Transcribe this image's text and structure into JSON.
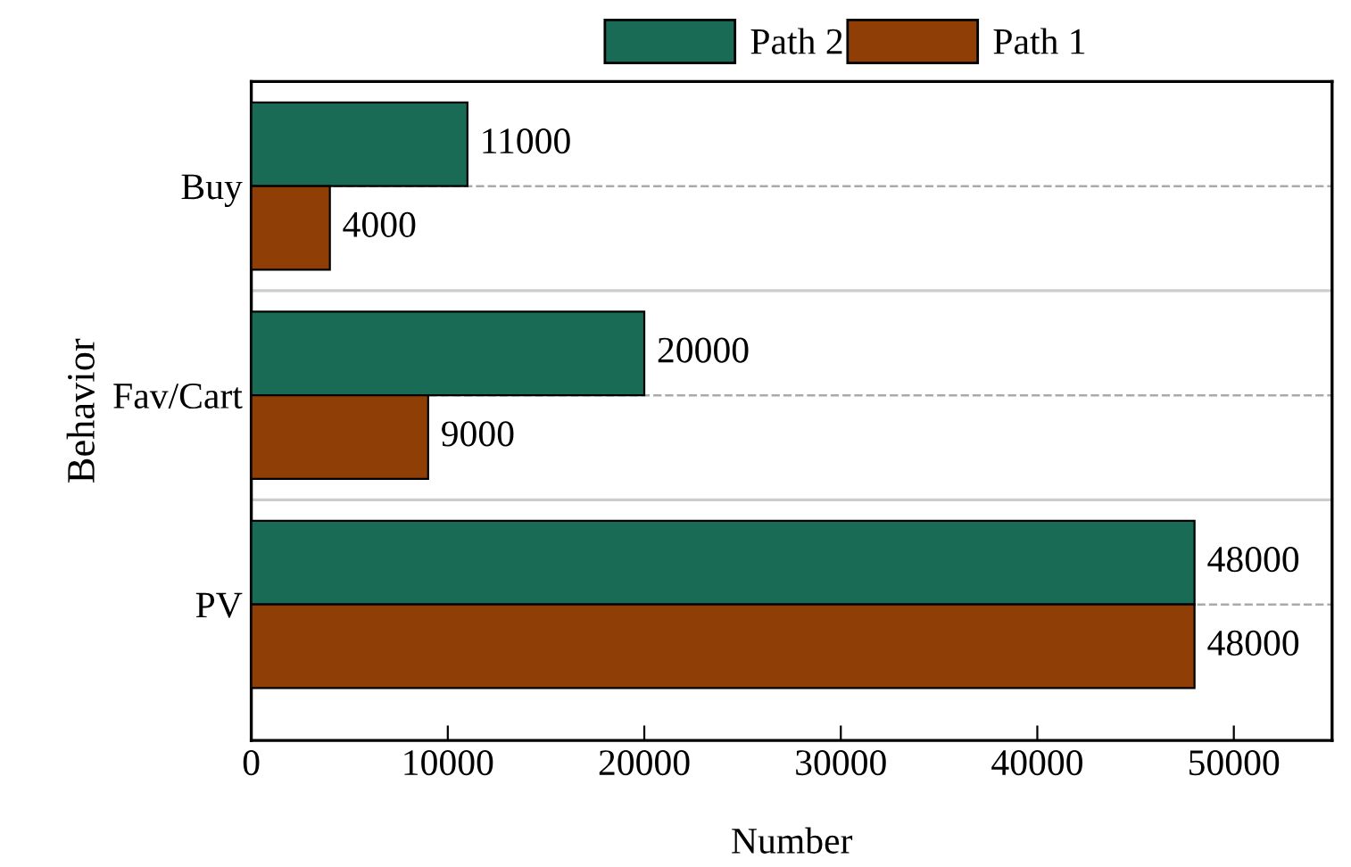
{
  "chart_data": {
    "type": "bar",
    "orientation": "horizontal",
    "xlabel": "Number",
    "ylabel": "Behavior",
    "categories": [
      "Buy",
      "Fav/Cart",
      "PV"
    ],
    "series": [
      {
        "name": "Path 2",
        "color": "#1a6b55",
        "values": [
          11000,
          20000,
          48000
        ]
      },
      {
        "name": "Path 1",
        "color": "#8f3f06",
        "values": [
          4000,
          9000,
          48000
        ]
      }
    ],
    "xlim": [
      0,
      55000
    ],
    "xticks": [
      0,
      10000,
      20000,
      30000,
      40000,
      50000
    ],
    "data_labels": true,
    "grid": "y",
    "legend": "top"
  }
}
